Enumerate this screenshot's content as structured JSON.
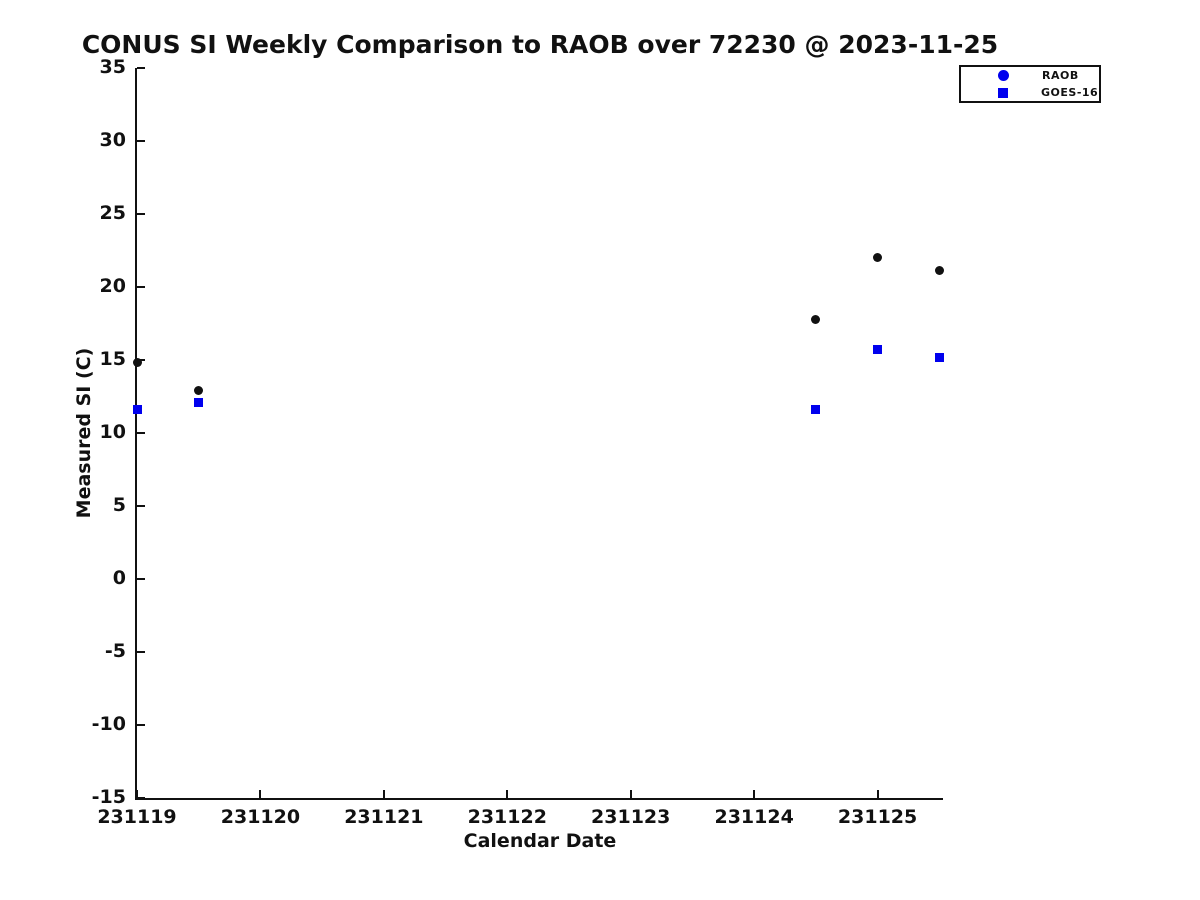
{
  "chart_data": {
    "type": "scatter",
    "title": "CONUS SI Weekly Comparison to RAOB over 72230 @ 2023-11-25",
    "xlabel": "Calendar Date",
    "ylabel": "Measured SI (C)",
    "xlim": [
      231119,
      231125.53
    ],
    "ylim": [
      -15,
      35
    ],
    "grid": false,
    "legend_position": "top-right",
    "xticks": {
      "values": [
        231119,
        231120,
        231121,
        231122,
        231123,
        231124,
        231125
      ],
      "labels": [
        "231119",
        "231120",
        "231121",
        "231122",
        "231123",
        "231124",
        "231125"
      ]
    },
    "yticks": {
      "values": [
        -15,
        -10,
        -5,
        0,
        5,
        10,
        15,
        20,
        25,
        30,
        35
      ],
      "labels": [
        "-15",
        "-10",
        "-5",
        "0",
        "5",
        "10",
        "15",
        "20",
        "25",
        "30",
        "35"
      ]
    },
    "series": [
      {
        "name": "RAOB",
        "marker": "circle",
        "marker_color": "#111111",
        "legend_marker_color": "#0000ee",
        "x": [
          231119.0,
          231119.5,
          231124.5,
          231125.0,
          231125.5
        ],
        "y": [
          14.8,
          12.9,
          17.8,
          22.0,
          21.1
        ]
      },
      {
        "name": "GOES-16",
        "marker": "square",
        "marker_color": "#0000ee",
        "legend_marker_color": "#0000ee",
        "x": [
          231119.0,
          231119.5,
          231124.5,
          231125.0,
          231125.5
        ],
        "y": [
          11.6,
          12.1,
          11.6,
          15.7,
          15.2
        ]
      }
    ]
  }
}
